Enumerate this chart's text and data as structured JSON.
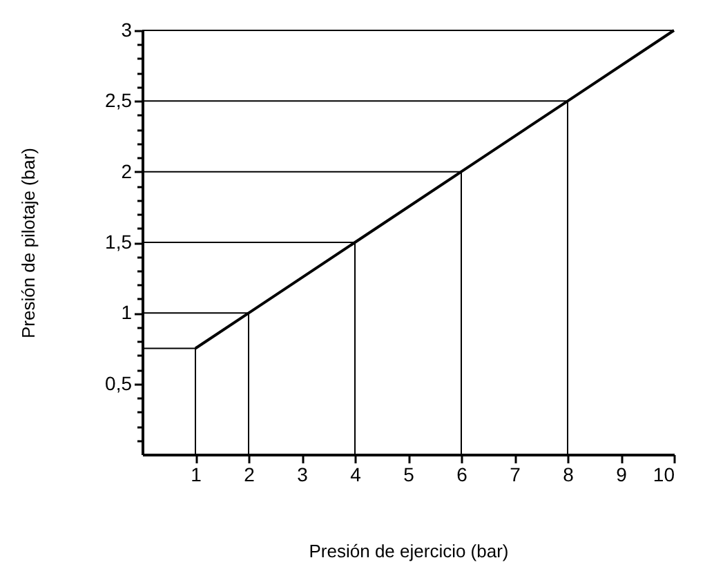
{
  "chart_data": {
    "type": "line",
    "xlabel": "Presión de ejercicio (bar)",
    "ylabel": "Presión de pilotaje (bar)",
    "x": [
      1,
      2,
      4,
      6,
      8,
      10
    ],
    "series": [
      {
        "color": "#000000",
        "values": [
          0.75,
          1,
          1.5,
          2,
          2.5,
          3
        ]
      },
      {
        "type": "line",
        "color": "#000000",
        "x": [
          0,
          1,
          1
        ],
        "values": [
          0.75,
          0.75,
          0
        ]
      },
      {
        "type": "line",
        "color": "#000000",
        "x": [
          0,
          2,
          2
        ],
        "values": [
          1,
          1,
          0
        ]
      },
      {
        "type": "line",
        "color": "#000000",
        "x": [
          0,
          4,
          4
        ],
        "values": [
          1.5,
          1.5,
          0
        ]
      },
      {
        "type": "line",
        "color": "#000000",
        "x": [
          0,
          6,
          6
        ],
        "values": [
          2,
          2,
          0
        ]
      },
      {
        "type": "line",
        "color": "#000000",
        "x": [
          0,
          8,
          8
        ],
        "values": [
          2.5,
          2.5,
          0
        ]
      },
      {
        "type": "line",
        "color": "#000000",
        "x": [
          0,
          10
        ],
        "values": [
          3,
          3
        ]
      }
    ],
    "xlim": [
      0,
      10
    ],
    "ylim": [
      0,
      3
    ],
    "xticks": [
      1,
      2,
      3,
      4,
      5,
      6,
      7,
      8,
      9,
      10
    ],
    "yticks": [
      {
        "value": 0.1,
        "label": null
      },
      {
        "value": 0.2,
        "label": null
      },
      {
        "value": 0.3,
        "label": null
      },
      {
        "value": 0.4,
        "label": null
      },
      {
        "value": 0.5,
        "label": "0,5"
      },
      {
        "value": 0.6,
        "label": null
      },
      {
        "value": 0.7,
        "label": null
      },
      {
        "value": 0.8,
        "label": null
      },
      {
        "value": 0.9,
        "label": null
      },
      {
        "value": 1,
        "label": "1"
      },
      {
        "value": 1.1,
        "label": null
      },
      {
        "value": 1.2,
        "label": null
      },
      {
        "value": 1.3,
        "label": null
      },
      {
        "value": 1.4,
        "label": null
      },
      {
        "value": 1.5,
        "label": "1,5"
      },
      {
        "value": 1.6,
        "label": null
      },
      {
        "value": 1.7,
        "label": null
      },
      {
        "value": 1.8,
        "label": null
      },
      {
        "value": 1.9,
        "label": null
      },
      {
        "value": 2,
        "label": "2"
      },
      {
        "value": 2.1,
        "label": null
      },
      {
        "value": 2.2,
        "label": null
      },
      {
        "value": 2.3,
        "label": null
      },
      {
        "value": 2.4,
        "label": null
      },
      {
        "value": 2.5,
        "label": "2,5"
      },
      {
        "value": 2.6,
        "label": null
      },
      {
        "value": 2.7,
        "label": null
      },
      {
        "value": 2.8,
        "label": null
      },
      {
        "value": 2.9,
        "label": null
      },
      {
        "value": 3,
        "label": "3"
      }
    ],
    "marker": "none",
    "line_style": "solid"
  }
}
